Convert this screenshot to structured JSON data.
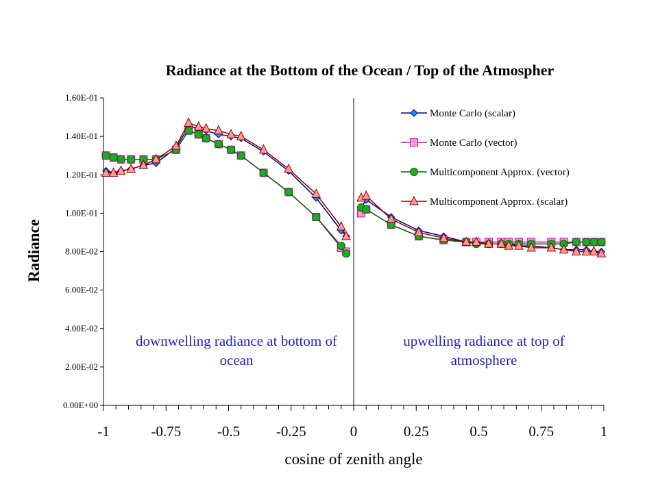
{
  "chart_data": {
    "type": "line",
    "title": "Radiance at the Bottom of the Ocean / Top of the Atmospher",
    "xlabel": "cosine of zenith angle",
    "ylabel": "Radiance",
    "xlim": [
      -1,
      1
    ],
    "ylim": [
      0,
      0.16
    ],
    "x_ticks": [
      "-1",
      "-0.75",
      "-0.5",
      "-0.25",
      "0",
      "0.25",
      "0.5",
      "0.75",
      "1"
    ],
    "y_ticks": [
      "0.00E+00",
      "2.00E-02",
      "4.00E-02",
      "6.00E-02",
      "8.00E-02",
      "1.00E-01",
      "1.20E-01",
      "1.40E-01",
      "1.60E-01"
    ],
    "annotations": [
      {
        "lines": [
          "downwelling radiance at bottom of",
          "ocean"
        ]
      },
      {
        "lines": [
          "upwelling radiance at top of",
          "atmosphere"
        ]
      }
    ],
    "legend_position": "top-right",
    "series": [
      {
        "name": "Monte Carlo (scalar)",
        "marker": "diamond",
        "line_color": "#000080",
        "marker_color": "#1e90ff",
        "x": [
          -0.99,
          -0.96,
          -0.93,
          -0.89,
          -0.84,
          -0.79,
          -0.71,
          -0.66,
          -0.62,
          -0.59,
          -0.54,
          -0.49,
          -0.45,
          -0.36,
          -0.26,
          -0.15,
          -0.05,
          -0.03,
          0.03,
          0.05,
          0.15,
          0.26,
          0.36,
          0.45,
          0.49,
          0.54,
          0.59,
          0.62,
          0.66,
          0.71,
          0.79,
          0.84,
          0.89,
          0.93,
          0.96,
          0.99
        ],
        "y": [
          0.122,
          0.121,
          0.122,
          0.123,
          0.125,
          0.126,
          0.134,
          0.145,
          0.144,
          0.143,
          0.141,
          0.14,
          0.139,
          0.132,
          0.122,
          0.108,
          0.091,
          0.088,
          0.103,
          0.107,
          0.098,
          0.091,
          0.088,
          0.085,
          0.085,
          0.084,
          0.084,
          0.084,
          0.083,
          0.083,
          0.082,
          0.081,
          0.081,
          0.081,
          0.08,
          0.08
        ]
      },
      {
        "name": "Monte Carlo (vector)",
        "marker": "square",
        "line_color": "#cc00cc",
        "marker_color": "#ff99cc",
        "x": [
          -0.99,
          -0.96,
          -0.93,
          -0.89,
          -0.84,
          -0.79,
          -0.71,
          -0.66,
          -0.62,
          -0.59,
          -0.54,
          -0.49,
          -0.45,
          -0.36,
          -0.26,
          -0.15,
          -0.05,
          -0.03,
          0.03,
          0.05,
          0.15,
          0.26,
          0.36,
          0.45,
          0.49,
          0.54,
          0.59,
          0.62,
          0.66,
          0.71,
          0.79,
          0.84,
          0.89,
          0.93,
          0.96,
          0.99
        ],
        "y": [
          0.13,
          0.129,
          0.128,
          0.128,
          0.128,
          0.128,
          0.133,
          0.143,
          0.141,
          0.139,
          0.136,
          0.133,
          0.13,
          0.121,
          0.111,
          0.098,
          0.082,
          0.08,
          0.1,
          0.102,
          0.094,
          0.088,
          0.086,
          0.085,
          0.085,
          0.085,
          0.085,
          0.085,
          0.085,
          0.085,
          0.085,
          0.085,
          0.085,
          0.085,
          0.085,
          0.085
        ]
      },
      {
        "name": "Multicomponent Approx. (vector)",
        "marker": "circle",
        "line_color": "#006400",
        "marker_color": "#22aa22",
        "x": [
          -0.99,
          -0.96,
          -0.93,
          -0.89,
          -0.84,
          -0.79,
          -0.71,
          -0.66,
          -0.62,
          -0.59,
          -0.54,
          -0.49,
          -0.45,
          -0.36,
          -0.26,
          -0.15,
          -0.05,
          -0.03,
          0.03,
          0.05,
          0.15,
          0.26,
          0.36,
          0.45,
          0.49,
          0.54,
          0.59,
          0.62,
          0.66,
          0.71,
          0.79,
          0.84,
          0.89,
          0.93,
          0.96,
          0.99
        ],
        "y": [
          0.13,
          0.129,
          0.128,
          0.128,
          0.128,
          0.128,
          0.133,
          0.143,
          0.141,
          0.139,
          0.136,
          0.133,
          0.13,
          0.121,
          0.111,
          0.098,
          0.083,
          0.079,
          0.103,
          0.102,
          0.094,
          0.088,
          0.086,
          0.085,
          0.084,
          0.084,
          0.084,
          0.084,
          0.084,
          0.084,
          0.084,
          0.084,
          0.085,
          0.085,
          0.085,
          0.085
        ]
      },
      {
        "name": "Multicomponent Approx. (scalar)",
        "marker": "triangle",
        "line_color": "#8b0000",
        "marker_color": "#ff9999",
        "x": [
          -0.99,
          -0.96,
          -0.93,
          -0.89,
          -0.84,
          -0.79,
          -0.71,
          -0.66,
          -0.62,
          -0.59,
          -0.54,
          -0.49,
          -0.45,
          -0.36,
          -0.26,
          -0.15,
          -0.05,
          -0.03,
          0.03,
          0.05,
          0.15,
          0.26,
          0.36,
          0.45,
          0.49,
          0.54,
          0.59,
          0.62,
          0.66,
          0.71,
          0.79,
          0.84,
          0.89,
          0.93,
          0.96,
          0.99
        ],
        "y": [
          0.121,
          0.121,
          0.122,
          0.123,
          0.125,
          0.128,
          0.135,
          0.147,
          0.145,
          0.144,
          0.143,
          0.141,
          0.14,
          0.133,
          0.123,
          0.11,
          0.093,
          0.088,
          0.108,
          0.109,
          0.097,
          0.09,
          0.087,
          0.085,
          0.085,
          0.084,
          0.084,
          0.083,
          0.083,
          0.082,
          0.082,
          0.081,
          0.08,
          0.08,
          0.08,
          0.079
        ]
      }
    ]
  }
}
